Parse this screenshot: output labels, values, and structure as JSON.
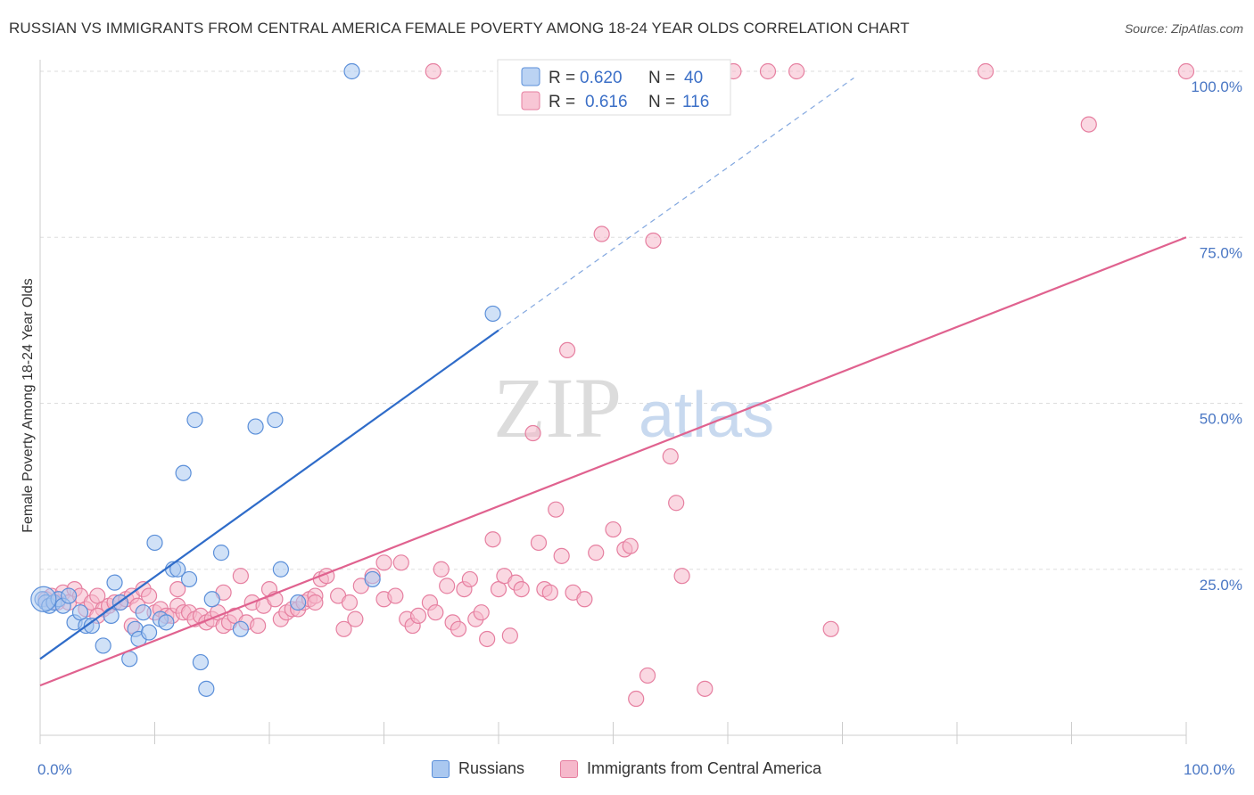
{
  "title": "RUSSIAN VS IMMIGRANTS FROM CENTRAL AMERICA FEMALE POVERTY AMONG 18-24 YEAR OLDS CORRELATION CHART",
  "source": "Source: ZipAtlas.com",
  "watermark": {
    "zip": "ZIP",
    "atlas": "atlas"
  },
  "colors": {
    "russians_fill": "#aac8f0",
    "russians_stroke": "#5b8fd9",
    "russians_line": "#2f6cc9",
    "immigrants_fill": "#f6b8cb",
    "immigrants_stroke": "#e67fa0",
    "immigrants_line": "#e0628f",
    "axis_text": "#4a77c4",
    "grid": "#dddddd"
  },
  "legend": {
    "r_label": "R =",
    "n_label": "N =",
    "russians": {
      "r": "0.620",
      "n": "40"
    },
    "immigrants": {
      "r": "0.616",
      "n": "116"
    }
  },
  "bottom_legend": {
    "russians": "Russians",
    "immigrants": "Immigrants from Central America"
  },
  "chart_data": {
    "type": "scatter",
    "title": "RUSSIAN VS IMMIGRANTS FROM CENTRAL AMERICA FEMALE POVERTY AMONG 18-24 YEAR OLDS CORRELATION CHART",
    "xlabel": "",
    "ylabel": "Female Poverty Among 18-24 Year Olds",
    "xlim": [
      0,
      100
    ],
    "ylim": [
      0,
      100
    ],
    "x_tick_labels": [
      "0.0%",
      "100.0%"
    ],
    "y_tick_labels": [
      "25.0%",
      "50.0%",
      "75.0%",
      "100.0%"
    ],
    "y_ticks": [
      25,
      50,
      75,
      100
    ],
    "series": [
      {
        "name": "Russians",
        "r": 0.62,
        "n": 40,
        "trend": {
          "x0": 0,
          "y0": 11.5,
          "x1": 40,
          "y1": 61,
          "dash_to_x": 71,
          "dash_to_y": 99
        },
        "points": [
          [
            0.2,
            20.5
          ],
          [
            0.5,
            20
          ],
          [
            0.8,
            19.5
          ],
          [
            1.2,
            20
          ],
          [
            1.6,
            20.5
          ],
          [
            2,
            19.5
          ],
          [
            2.5,
            21
          ],
          [
            3,
            17
          ],
          [
            3.5,
            18.5
          ],
          [
            4,
            16.5
          ],
          [
            4.5,
            16.5
          ],
          [
            5.5,
            13.5
          ],
          [
            6.2,
            18
          ],
          [
            6.5,
            23
          ],
          [
            7,
            20
          ],
          [
            7.8,
            11.5
          ],
          [
            8.3,
            16
          ],
          [
            8.6,
            14.5
          ],
          [
            9,
            18.5
          ],
          [
            9.5,
            15.5
          ],
          [
            10,
            29
          ],
          [
            10.5,
            17.5
          ],
          [
            11,
            17
          ],
          [
            11.6,
            25
          ],
          [
            12,
            25
          ],
          [
            12.5,
            39.5
          ],
          [
            13,
            23.5
          ],
          [
            13.5,
            47.5
          ],
          [
            14,
            11
          ],
          [
            14.5,
            7
          ],
          [
            15,
            20.5
          ],
          [
            15.8,
            27.5
          ],
          [
            17.5,
            16
          ],
          [
            18.8,
            46.5
          ],
          [
            20.5,
            47.5
          ],
          [
            21,
            25
          ],
          [
            27.2,
            100
          ],
          [
            29,
            23.5
          ],
          [
            39.5,
            63.5
          ],
          [
            22.5,
            20
          ]
        ]
      },
      {
        "name": "Immigrants from Central America",
        "r": 0.616,
        "n": 116,
        "trend": {
          "x0": 0,
          "y0": 7.5,
          "x1": 100,
          "y1": 75
        },
        "points": [
          [
            0.5,
            20.5
          ],
          [
            1,
            21
          ],
          [
            1.5,
            20
          ],
          [
            2,
            21.5
          ],
          [
            2.5,
            20
          ],
          [
            3,
            22
          ],
          [
            3.5,
            21
          ],
          [
            4,
            19
          ],
          [
            4.5,
            20
          ],
          [
            5,
            21
          ],
          [
            5.5,
            19
          ],
          [
            6,
            19.5
          ],
          [
            6.5,
            20
          ],
          [
            7,
            20
          ],
          [
            7.5,
            20.5
          ],
          [
            8,
            21
          ],
          [
            8.5,
            19.5
          ],
          [
            9,
            22
          ],
          [
            9.5,
            21
          ],
          [
            10,
            18.5
          ],
          [
            10.5,
            19
          ],
          [
            11,
            18
          ],
          [
            11.5,
            18
          ],
          [
            12,
            19.5
          ],
          [
            12.5,
            18.5
          ],
          [
            13,
            18.5
          ],
          [
            13.5,
            17.5
          ],
          [
            14,
            18
          ],
          [
            14.5,
            17
          ],
          [
            15,
            17.5
          ],
          [
            15.5,
            18.5
          ],
          [
            16,
            16.5
          ],
          [
            16.5,
            17
          ],
          [
            17,
            18
          ],
          [
            17.5,
            24
          ],
          [
            18,
            17
          ],
          [
            18.5,
            20
          ],
          [
            19,
            16.5
          ],
          [
            19.5,
            19.5
          ],
          [
            20,
            22
          ],
          [
            20.5,
            20.5
          ],
          [
            21,
            17.5
          ],
          [
            21.5,
            18.5
          ],
          [
            22,
            19
          ],
          [
            22.5,
            19
          ],
          [
            23,
            20
          ],
          [
            23.5,
            20.5
          ],
          [
            24,
            21
          ],
          [
            24.5,
            23.5
          ],
          [
            25,
            24
          ],
          [
            26,
            21
          ],
          [
            26.5,
            16
          ],
          [
            27,
            20
          ],
          [
            27.5,
            17.5
          ],
          [
            28,
            22.5
          ],
          [
            29,
            24
          ],
          [
            30,
            20.5
          ],
          [
            31,
            21
          ],
          [
            31.5,
            26
          ],
          [
            32,
            17.5
          ],
          [
            32.5,
            16.5
          ],
          [
            33,
            18
          ],
          [
            34,
            20
          ],
          [
            34.5,
            18.5
          ],
          [
            35,
            25
          ],
          [
            35.5,
            22.5
          ],
          [
            36,
            17
          ],
          [
            36.5,
            16
          ],
          [
            37,
            22
          ],
          [
            37.5,
            23.5
          ],
          [
            38,
            17.5
          ],
          [
            38.5,
            18.5
          ],
          [
            39,
            14.5
          ],
          [
            39.5,
            29.5
          ],
          [
            40,
            22
          ],
          [
            40.5,
            24
          ],
          [
            41,
            15
          ],
          [
            41.5,
            23
          ],
          [
            42,
            22
          ],
          [
            43,
            45.5
          ],
          [
            43.5,
            29
          ],
          [
            44,
            22
          ],
          [
            44.5,
            21.5
          ],
          [
            45,
            34
          ],
          [
            45.5,
            27
          ],
          [
            46,
            58
          ],
          [
            46.5,
            21.5
          ],
          [
            47.5,
            20.5
          ],
          [
            48.5,
            27.5
          ],
          [
            49,
            75.5
          ],
          [
            50,
            31
          ],
          [
            51,
            28
          ],
          [
            51.5,
            28.5
          ],
          [
            52,
            5.5
          ],
          [
            53,
            9
          ],
          [
            53.5,
            74.5
          ],
          [
            55,
            42
          ],
          [
            55.5,
            35
          ],
          [
            56,
            24
          ],
          [
            58,
            7
          ],
          [
            59,
            100
          ],
          [
            60.5,
            100
          ],
          [
            63.5,
            100
          ],
          [
            66,
            100
          ],
          [
            69,
            16
          ],
          [
            82.5,
            100
          ],
          [
            91.5,
            92
          ],
          [
            100,
            100
          ],
          [
            34.3,
            100
          ],
          [
            16,
            21.5
          ],
          [
            24,
            20
          ],
          [
            30,
            26
          ],
          [
            12,
            22
          ],
          [
            8,
            16.5
          ],
          [
            5,
            18
          ]
        ]
      }
    ]
  }
}
